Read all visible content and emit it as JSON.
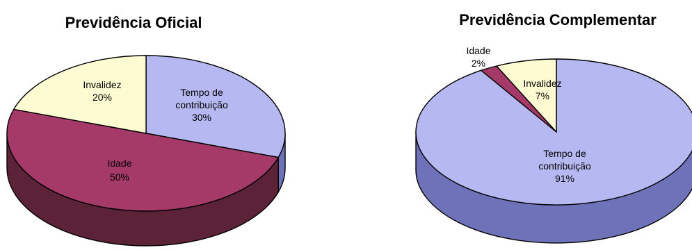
{
  "chart_data": [
    {
      "type": "pie",
      "title": "Previdência Oficial",
      "slices": [
        {
          "label_lines": [
            "Tempo de",
            "contribuição",
            "30%"
          ],
          "value": 30,
          "color": "#b6b8f2",
          "side_color": "#6e72b8"
        },
        {
          "label_lines": [
            "Idade",
            "50%"
          ],
          "value": 50,
          "color": "#a53a69",
          "side_color": "#5c2238"
        },
        {
          "label_lines": [
            "Invalidez",
            "20%"
          ],
          "value": 20,
          "color": "#fdfbd2",
          "side_color": "#c9c69a"
        }
      ]
    },
    {
      "type": "pie",
      "title": "Previdência Complementar",
      "slices": [
        {
          "label_lines": [
            "Tempo de",
            "contribuição",
            "91%"
          ],
          "value": 91,
          "color": "#b6b8f2",
          "side_color": "#6e72b8"
        },
        {
          "label_lines": [
            "Idade",
            "2%"
          ],
          "value": 2,
          "color": "#a53a69",
          "side_color": "#5c2238"
        },
        {
          "label_lines": [
            "Invalidez",
            "7%"
          ],
          "value": 7,
          "color": "#fdfbd2",
          "side_color": "#c9c69a"
        }
      ]
    }
  ]
}
